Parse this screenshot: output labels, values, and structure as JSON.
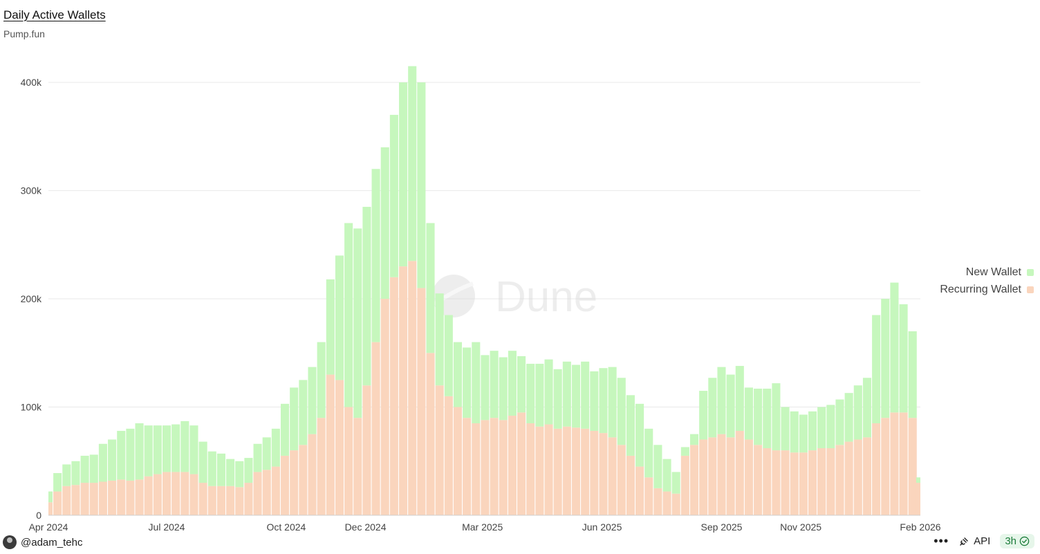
{
  "header": {
    "title": "Daily Active Wallets",
    "subtitle": "Pump.fun"
  },
  "watermark": "Dune",
  "footer": {
    "user": "@adam_tehc",
    "more": "•••",
    "api_label": "API",
    "refresh_badge": "3h"
  },
  "colors": {
    "new_wallet": "#c6f7bd",
    "recurring_wallet": "#fad5bd",
    "grid": "#e9e9e9",
    "axis_text": "#444444",
    "badge_bg": "#e6f6ea",
    "badge_text": "#1c7c3a"
  },
  "chart_data": {
    "type": "bar",
    "stacked": true,
    "title": "Daily Active Wallets",
    "subtitle": "Pump.fun",
    "x_range": [
      "2024-04-01",
      "2026-02-01"
    ],
    "xticks": [
      "Apr 2024",
      "Jul 2024",
      "Oct 2024",
      "Dec 2024",
      "Mar 2025",
      "Jun 2025",
      "Sep 2025",
      "Nov 2025",
      "Feb 2026"
    ],
    "xtick_dates": [
      "2024-04-01",
      "2024-07-01",
      "2024-10-01",
      "2024-12-01",
      "2025-03-01",
      "2025-06-01",
      "2025-09-01",
      "2025-11-01",
      "2026-02-01"
    ],
    "yticks": [
      0,
      100000,
      200000,
      300000,
      400000
    ],
    "ytick_labels": [
      "0",
      "100k",
      "200k",
      "300k",
      "400k"
    ],
    "ylim": [
      0,
      425000
    ],
    "grid": true,
    "legend_position": "right",
    "resolution": "weekly",
    "series": [
      {
        "name": "New Wallet",
        "color": "#c6f7bd",
        "x": [
          "2024-04-01",
          "2024-04-08",
          "2024-04-15",
          "2024-04-22",
          "2024-04-29",
          "2024-05-06",
          "2024-05-13",
          "2024-05-20",
          "2024-05-27",
          "2024-06-03",
          "2024-06-10",
          "2024-06-17",
          "2024-06-24",
          "2024-07-01",
          "2024-07-08",
          "2024-07-15",
          "2024-07-22",
          "2024-07-29",
          "2024-08-05",
          "2024-08-12",
          "2024-08-19",
          "2024-08-26",
          "2024-09-02",
          "2024-09-09",
          "2024-09-16",
          "2024-09-23",
          "2024-09-30",
          "2024-10-07",
          "2024-10-14",
          "2024-10-21",
          "2024-10-28",
          "2024-11-04",
          "2024-11-11",
          "2024-11-18",
          "2024-11-25",
          "2024-12-02",
          "2024-12-09",
          "2024-12-16",
          "2024-12-23",
          "2024-12-30",
          "2025-01-06",
          "2025-01-13",
          "2025-01-20",
          "2025-01-27",
          "2025-02-03",
          "2025-02-10",
          "2025-02-17",
          "2025-02-24",
          "2025-03-03",
          "2025-03-10",
          "2025-03-17",
          "2025-03-24",
          "2025-03-31",
          "2025-04-07",
          "2025-04-14",
          "2025-04-21",
          "2025-04-28",
          "2025-05-05",
          "2025-05-12",
          "2025-05-19",
          "2025-05-26",
          "2025-06-02",
          "2025-06-09",
          "2025-06-16",
          "2025-06-23",
          "2025-06-30",
          "2025-07-07",
          "2025-07-14",
          "2025-07-21",
          "2025-07-28",
          "2025-08-04",
          "2025-08-11",
          "2025-08-18",
          "2025-08-25",
          "2025-09-01",
          "2025-09-08",
          "2025-09-15",
          "2025-09-22",
          "2025-09-29",
          "2025-10-06",
          "2025-10-13",
          "2025-10-20",
          "2025-10-27",
          "2025-11-03",
          "2025-11-10",
          "2025-11-17",
          "2025-11-24",
          "2025-12-01",
          "2025-12-08",
          "2025-12-15",
          "2025-12-22",
          "2025-12-29",
          "2026-01-05",
          "2026-01-12",
          "2026-01-19",
          "2026-01-26",
          "2026-02-01"
        ],
        "values": [
          10000,
          17000,
          20000,
          22000,
          25000,
          26000,
          35000,
          38000,
          45000,
          48000,
          52000,
          47000,
          45000,
          43000,
          44000,
          47000,
          45000,
          38000,
          32000,
          30000,
          25000,
          24000,
          23000,
          26000,
          30000,
          35000,
          48000,
          58000,
          60000,
          62000,
          70000,
          88000,
          115000,
          170000,
          175000,
          165000,
          160000,
          140000,
          150000,
          170000,
          180000,
          190000,
          120000,
          85000,
          75000,
          60000,
          65000,
          75000,
          60000,
          62000,
          58000,
          60000,
          52000,
          55000,
          58000,
          60000,
          55000,
          60000,
          58000,
          62000,
          55000,
          60000,
          65000,
          62000,
          56000,
          58000,
          45000,
          40000,
          30000,
          20000,
          8000,
          10000,
          45000,
          55000,
          62000,
          58000,
          60000,
          48000,
          52000,
          55000,
          62000,
          40000,
          38000,
          35000,
          36000,
          38000,
          40000,
          42000,
          45000,
          50000,
          55000,
          100000,
          110000,
          120000,
          100000,
          80000,
          5000
        ]
      },
      {
        "name": "Recurring Wallet",
        "color": "#fad5bd",
        "x": [
          "2024-04-01",
          "2024-04-08",
          "2024-04-15",
          "2024-04-22",
          "2024-04-29",
          "2024-05-06",
          "2024-05-13",
          "2024-05-20",
          "2024-05-27",
          "2024-06-03",
          "2024-06-10",
          "2024-06-17",
          "2024-06-24",
          "2024-07-01",
          "2024-07-08",
          "2024-07-15",
          "2024-07-22",
          "2024-07-29",
          "2024-08-05",
          "2024-08-12",
          "2024-08-19",
          "2024-08-26",
          "2024-09-02",
          "2024-09-09",
          "2024-09-16",
          "2024-09-23",
          "2024-09-30",
          "2024-10-07",
          "2024-10-14",
          "2024-10-21",
          "2024-10-28",
          "2024-11-04",
          "2024-11-11",
          "2024-11-18",
          "2024-11-25",
          "2024-12-02",
          "2024-12-09",
          "2024-12-16",
          "2024-12-23",
          "2024-12-30",
          "2025-01-06",
          "2025-01-13",
          "2025-01-20",
          "2025-01-27",
          "2025-02-03",
          "2025-02-10",
          "2025-02-17",
          "2025-02-24",
          "2025-03-03",
          "2025-03-10",
          "2025-03-17",
          "2025-03-24",
          "2025-03-31",
          "2025-04-07",
          "2025-04-14",
          "2025-04-21",
          "2025-04-28",
          "2025-05-05",
          "2025-05-12",
          "2025-05-19",
          "2025-05-26",
          "2025-06-02",
          "2025-06-09",
          "2025-06-16",
          "2025-06-23",
          "2025-06-30",
          "2025-07-07",
          "2025-07-14",
          "2025-07-21",
          "2025-07-28",
          "2025-08-04",
          "2025-08-11",
          "2025-08-18",
          "2025-08-25",
          "2025-09-01",
          "2025-09-08",
          "2025-09-15",
          "2025-09-22",
          "2025-09-29",
          "2025-10-06",
          "2025-10-13",
          "2025-10-20",
          "2025-10-27",
          "2025-11-03",
          "2025-11-10",
          "2025-11-17",
          "2025-11-24",
          "2025-12-01",
          "2025-12-08",
          "2025-12-15",
          "2025-12-22",
          "2025-12-29",
          "2026-01-05",
          "2026-01-12",
          "2026-01-19",
          "2026-01-26",
          "2026-02-01"
        ],
        "values": [
          12000,
          22000,
          27000,
          28000,
          30000,
          30000,
          31000,
          32000,
          33000,
          32000,
          33000,
          36000,
          38000,
          40000,
          40000,
          40000,
          38000,
          30000,
          27000,
          27000,
          27000,
          26000,
          30000,
          40000,
          42000,
          45000,
          55000,
          60000,
          65000,
          75000,
          90000,
          130000,
          125000,
          100000,
          90000,
          120000,
          160000,
          200000,
          220000,
          230000,
          235000,
          210000,
          150000,
          120000,
          110000,
          100000,
          90000,
          85000,
          88000,
          90000,
          88000,
          92000,
          95000,
          85000,
          82000,
          84000,
          80000,
          82000,
          81000,
          80000,
          78000,
          76000,
          72000,
          65000,
          55000,
          45000,
          35000,
          25000,
          22000,
          20000,
          55000,
          65000,
          70000,
          72000,
          75000,
          72000,
          78000,
          70000,
          65000,
          62000,
          60000,
          60000,
          58000,
          58000,
          60000,
          62000,
          62000,
          65000,
          68000,
          70000,
          72000,
          85000,
          90000,
          95000,
          95000,
          90000,
          30000
        ]
      }
    ]
  }
}
